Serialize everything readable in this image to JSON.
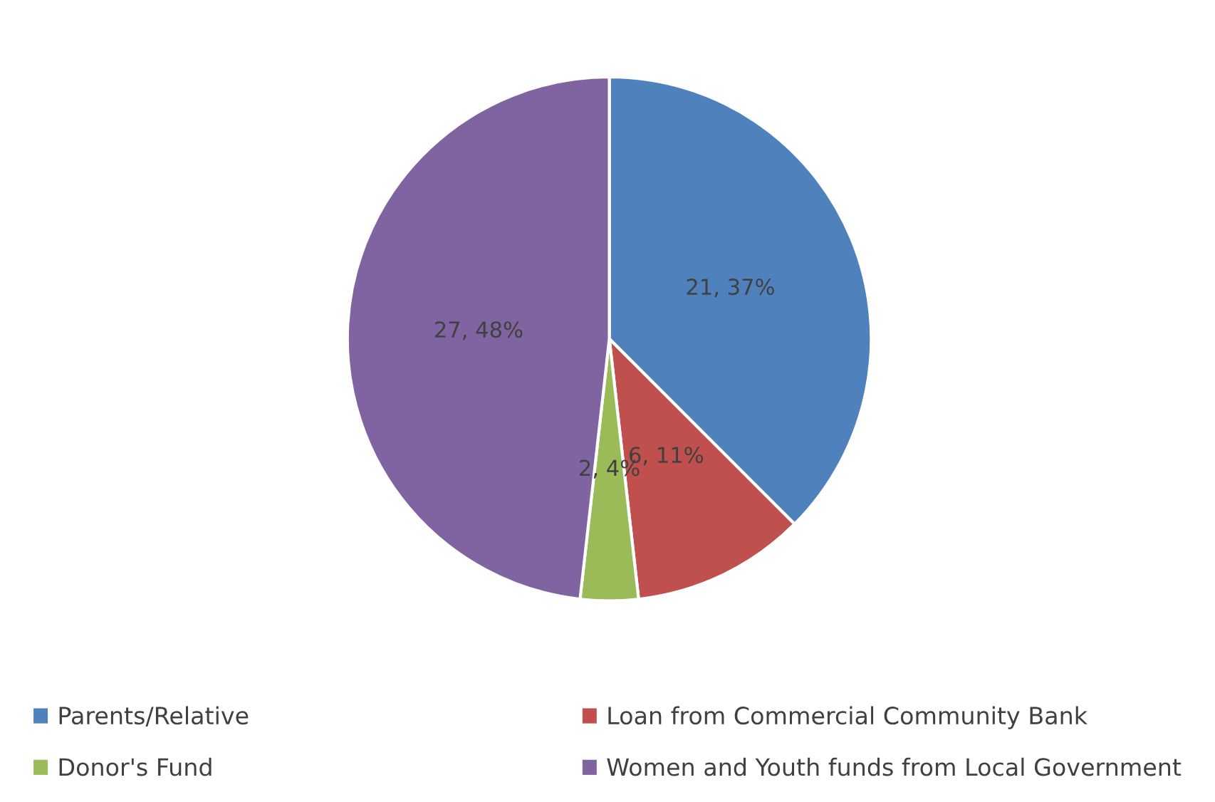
{
  "chart_data": {
    "type": "pie",
    "categories": [
      "Parents/Relative",
      "Loan from Commercial Community Bank",
      "Donor's Fund",
      "Women and Youth funds from Local Government"
    ],
    "values": [
      21,
      6,
      2,
      27
    ],
    "colors": [
      "#4f81bd",
      "#c0504d",
      "#9bbb59",
      "#8064a2"
    ],
    "value_labels": [
      "21, 37%",
      "6, 11%",
      "2, 4%",
      "27, 48%"
    ],
    "legend": "bottom"
  }
}
